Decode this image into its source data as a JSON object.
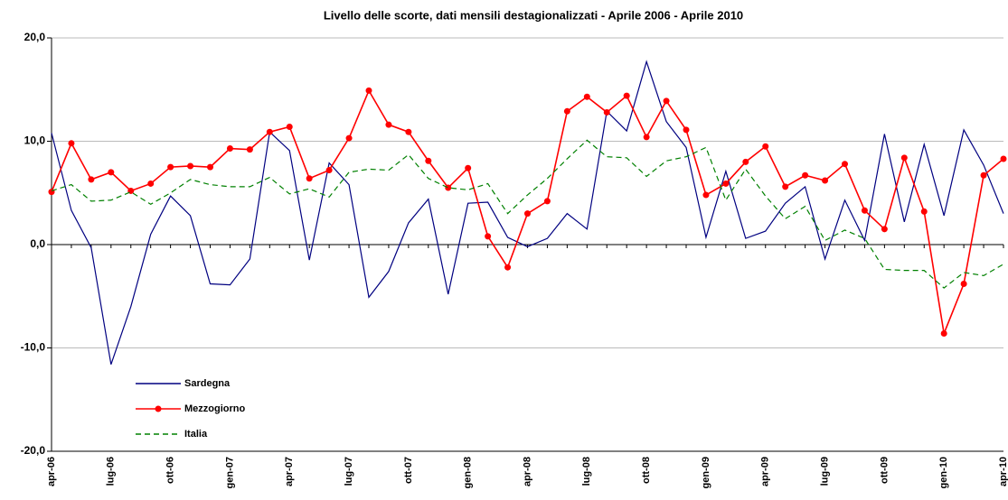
{
  "chart_data": {
    "type": "line",
    "title": "Livello delle scorte, dati mensili destagionalizzati - Aprile 2006 - Aprile 2010",
    "categories": [
      "apr-06",
      null,
      null,
      "lug-06",
      null,
      null,
      "ott-06",
      null,
      null,
      "gen-07",
      null,
      null,
      "apr-07",
      null,
      null,
      "lug-07",
      null,
      null,
      "ott-07",
      null,
      null,
      "gen-08",
      null,
      null,
      "apr-08",
      null,
      null,
      "lug-08",
      null,
      null,
      "ott-08",
      null,
      null,
      "gen-09",
      null,
      null,
      "apr-09",
      null,
      null,
      "lug-09",
      null,
      null,
      "ott-09",
      null,
      null,
      "gen-10",
      null,
      null,
      "apr-10"
    ],
    "series": [
      {
        "name": "Sardegna",
        "color": "#000080",
        "style": "solid",
        "marker": false,
        "values": [
          10.8,
          3.3,
          -0.3,
          -11.6,
          -6,
          1,
          4.7,
          2.8,
          -3.8,
          -3.9,
          -1.4,
          10.9,
          9.1,
          -1.5,
          7.9,
          5.8,
          -5.1,
          -2.6,
          2.1,
          4.4,
          -4.8,
          4.0,
          4.1,
          0.7,
          -0.2,
          0.6,
          3.0,
          1.5,
          12.9,
          11.0,
          17.7,
          11.9,
          9.4,
          0.7,
          7.1,
          0.6,
          1.3,
          4.0,
          5.6,
          -1.4,
          4.3,
          0.4,
          10.7,
          2.2,
          9.7,
          2.8,
          11.1,
          7.7,
          3.0
        ]
      },
      {
        "name": "Mezzogiorno",
        "color": "#ff0000",
        "style": "solid",
        "marker": true,
        "values": [
          5.1,
          9.8,
          6.3,
          7.0,
          5.2,
          5.9,
          7.5,
          7.6,
          7.5,
          9.3,
          9.2,
          10.9,
          11.4,
          6.4,
          7.2,
          10.3,
          14.9,
          11.6,
          10.9,
          8.1,
          5.5,
          7.4,
          0.8,
          -2.2,
          3.0,
          4.2,
          12.9,
          14.3,
          12.8,
          14.4,
          10.4,
          13.9,
          11.1,
          4.8,
          5.9,
          8.0,
          9.5,
          5.6,
          6.7,
          6.2,
          7.8,
          3.3,
          1.5,
          8.4,
          3.2,
          -8.6,
          -3.8,
          6.7,
          8.3
        ]
      },
      {
        "name": "Italia",
        "color": "#008000",
        "style": "dashed",
        "marker": false,
        "values": [
          5.2,
          5.8,
          4.2,
          4.3,
          5.1,
          3.9,
          5.0,
          6.3,
          5.8,
          5.6,
          5.6,
          6.5,
          4.9,
          5.4,
          4.6,
          7.0,
          7.3,
          7.2,
          8.7,
          6.4,
          5.5,
          5.3,
          5.9,
          3.0,
          4.8,
          6.4,
          8.3,
          10.1,
          8.5,
          8.4,
          6.6,
          8.1,
          8.5,
          9.4,
          4.3,
          7.3,
          4.7,
          2.5,
          3.7,
          0.4,
          1.4,
          0.6,
          -2.4,
          -2.5,
          -2.5,
          -4.2,
          -2.7,
          -3.0,
          -1.9
        ]
      }
    ],
    "ylim": [
      -20,
      20
    ],
    "yticks": [
      {
        "value": -20,
        "label": "-20,0"
      },
      {
        "value": -10,
        "label": "-10,0"
      },
      {
        "value": 0,
        "label": "0,0"
      },
      {
        "value": 10,
        "label": "10,0"
      },
      {
        "value": 20,
        "label": "20,0"
      }
    ],
    "grid": true
  }
}
